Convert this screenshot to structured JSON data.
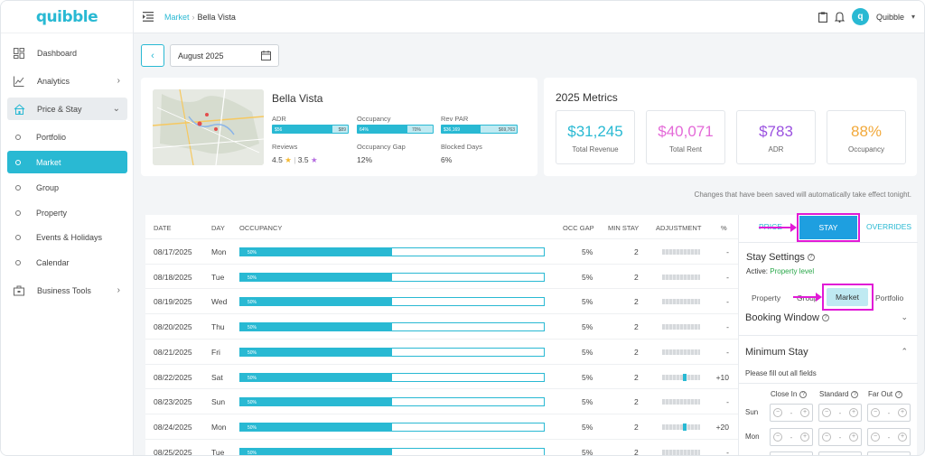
{
  "brand": {
    "logo": "quibble"
  },
  "sidebar": {
    "items": [
      {
        "label": "Dashboard"
      },
      {
        "label": "Analytics"
      },
      {
        "label": "Price & Stay"
      },
      {
        "label": "Portfolio"
      },
      {
        "label": "Market"
      },
      {
        "label": "Group"
      },
      {
        "label": "Property"
      },
      {
        "label": "Events & Holidays"
      },
      {
        "label": "Calendar"
      },
      {
        "label": "Business Tools"
      }
    ]
  },
  "header": {
    "breadcrumb": [
      "Market",
      "Bella Vista"
    ],
    "user": "Quibble",
    "avatar_letter": "q"
  },
  "month_selector": {
    "value": "August 2025"
  },
  "property": {
    "name": "Bella Vista",
    "adr_label": "ADR",
    "adr_left": "$56",
    "adr_right": "$89",
    "occupancy_label": "Occupancy",
    "occupancy_left": "64%",
    "occupancy_right": "70%",
    "revpar_label": "Rev PAR",
    "revpar_left": "$36,169",
    "revpar_right": "$69,763",
    "reviews_label": "Reviews",
    "reviews_a": "4.5",
    "reviews_b": "3.5",
    "occ_gap_label": "Occupancy Gap",
    "occ_gap_value": "12%",
    "blocked_label": "Blocked Days",
    "blocked_value": "6%"
  },
  "metrics": {
    "title": "2025 Metrics",
    "items": [
      {
        "value": "$31,245",
        "label": "Total Revenue",
        "color": "#29b9d3"
      },
      {
        "value": "$40,071",
        "label": "Total Rent",
        "color": "#e46ad8"
      },
      {
        "value": "$783",
        "label": "ADR",
        "color": "#9b52e0"
      },
      {
        "value": "88%",
        "label": "Occupancy",
        "color": "#f2a93b"
      }
    ]
  },
  "note": "Changes that have been saved will automatically take effect tonight.",
  "table": {
    "headers": [
      "DATE",
      "DAY",
      "OCCUPANCY",
      "OCC GAP",
      "MIN STAY",
      "ADJUSTMENT",
      "%"
    ],
    "rows": [
      {
        "date": "08/17/2025",
        "day": "Mon",
        "occ": "50%",
        "occ_fill": 0.5,
        "gap": "5%",
        "min": "2",
        "adj_mark": null,
        "pct": "-"
      },
      {
        "date": "08/18/2025",
        "day": "Tue",
        "occ": "50%",
        "occ_fill": 0.5,
        "gap": "5%",
        "min": "2",
        "adj_mark": null,
        "pct": "-"
      },
      {
        "date": "08/19/2025",
        "day": "Wed",
        "occ": "50%",
        "occ_fill": 0.5,
        "gap": "5%",
        "min": "2",
        "adj_mark": null,
        "pct": "-"
      },
      {
        "date": "08/20/2025",
        "day": "Thu",
        "occ": "50%",
        "occ_fill": 0.5,
        "gap": "5%",
        "min": "2",
        "adj_mark": null,
        "pct": "-"
      },
      {
        "date": "08/21/2025",
        "day": "Fri",
        "occ": "50%",
        "occ_fill": 0.5,
        "gap": "5%",
        "min": "2",
        "adj_mark": null,
        "pct": "-"
      },
      {
        "date": "08/22/2025",
        "day": "Sat",
        "occ": "50%",
        "occ_fill": 0.5,
        "gap": "5%",
        "min": "2",
        "adj_mark": 0.55,
        "pct": "+10"
      },
      {
        "date": "08/23/2025",
        "day": "Sun",
        "occ": "50%",
        "occ_fill": 0.5,
        "gap": "5%",
        "min": "2",
        "adj_mark": null,
        "pct": "-"
      },
      {
        "date": "08/24/2025",
        "day": "Mon",
        "occ": "50%",
        "occ_fill": 0.5,
        "gap": "5%",
        "min": "2",
        "adj_mark": 0.55,
        "pct": "+20"
      },
      {
        "date": "08/25/2025",
        "day": "Tue",
        "occ": "50%",
        "occ_fill": 0.5,
        "gap": "5%",
        "min": "2",
        "adj_mark": null,
        "pct": "-"
      }
    ]
  },
  "panel": {
    "tabs": [
      "PRICE",
      "STAY",
      "OVERRIDES"
    ],
    "stay_settings": "Stay Settings",
    "active_prefix": "Active:",
    "active_value": "Property level",
    "segments": [
      "Property",
      "Group",
      "Market",
      "Portfolio"
    ],
    "booking_window": "Booking Window",
    "minimum_stay": "Minimum Stay",
    "fill_note": "Please fill out all fields",
    "columns": [
      "Close In",
      "Standard",
      "Far Out"
    ],
    "days": [
      "Sun",
      "Mon"
    ],
    "stepper_value": "-"
  }
}
